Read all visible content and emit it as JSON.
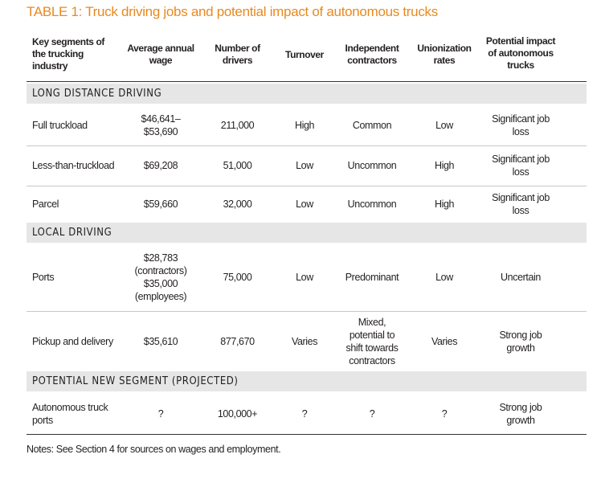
{
  "title": "TABLE 1: Truck driving jobs and potential impact of autonomous trucks",
  "headers": {
    "segment": "Key segments of the trucking industry",
    "wage": "Average annual wage",
    "drivers": "Number of drivers",
    "turnover": "Turnover",
    "contractors": "Independent contractors",
    "union": "Unionization rates",
    "impact": "Potential impact of autonomous trucks"
  },
  "sections": [
    {
      "label": "LONG DISTANCE DRIVING",
      "rows": [
        {
          "segment": "Full truckload",
          "wage": "$46,641–\n$53,690",
          "drivers": "211,000",
          "turnover": "High",
          "contractors": "Common",
          "union": "Low",
          "impact": "Significant job\nloss"
        },
        {
          "segment": "Less-than-truckload",
          "wage": "$69,208",
          "drivers": "51,000",
          "turnover": "Low",
          "contractors": "Uncommon",
          "union": "High",
          "impact": "Significant job\nloss"
        },
        {
          "segment": "Parcel",
          "wage": "$59,660",
          "drivers": "32,000",
          "turnover": "Low",
          "contractors": "Uncommon",
          "union": "High",
          "impact": "Significant job\nloss"
        }
      ]
    },
    {
      "label": "LOCAL DRIVING",
      "rows": [
        {
          "segment": "Ports",
          "wage": "$28,783\n(contractors)\n$35,000\n(employees)",
          "drivers": "75,000",
          "turnover": "Low",
          "contractors": "Predominant",
          "union": "Low",
          "impact": "Uncertain"
        },
        {
          "segment": "Pickup and delivery",
          "wage": "$35,610",
          "drivers": "877,670",
          "turnover": "Varies",
          "contractors": "Mixed,\npotential to\nshift towards\ncontractors",
          "union": "Varies",
          "impact": "Strong job\ngrowth"
        }
      ]
    },
    {
      "label": "POTENTIAL NEW SEGMENT (PROJECTED)",
      "rows": [
        {
          "segment": "Autonomous truck\nports",
          "wage": "?",
          "drivers": "100,000+",
          "turnover": "?",
          "contractors": "?",
          "union": "?",
          "impact": "Strong job\ngrowth"
        }
      ]
    }
  ],
  "note": "Notes: See Section 4 for sources on wages and employment."
}
